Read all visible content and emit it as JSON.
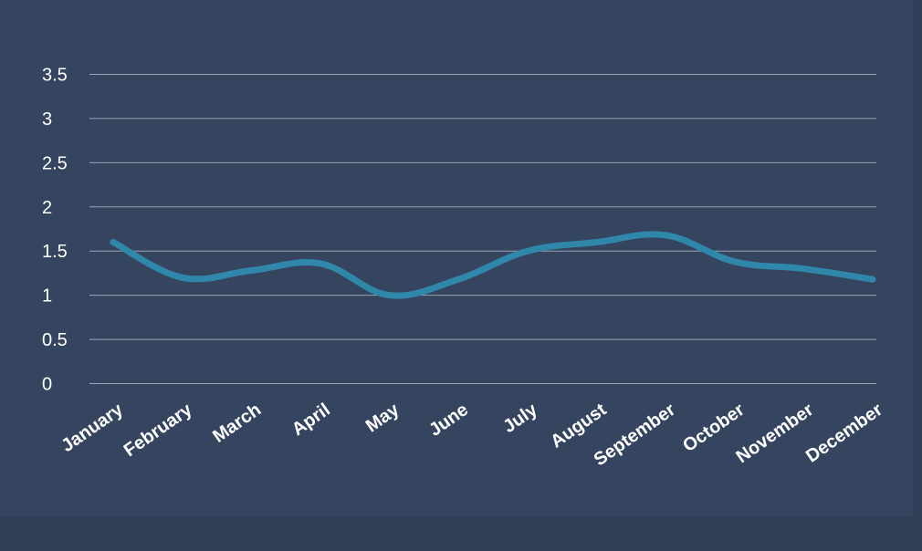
{
  "colors": {
    "background": "#36455f",
    "outer_background": "#2f3d57",
    "line": "#2f87a9",
    "grid": "#b9c2d2",
    "text": "#ffffff"
  },
  "chart_data": {
    "type": "line",
    "title": "",
    "xlabel": "",
    "ylabel": "",
    "categories": [
      "January",
      "February",
      "March",
      "April",
      "May",
      "June",
      "July",
      "August",
      "September",
      "October",
      "November",
      "December"
    ],
    "series": [
      {
        "values": [
          1.6,
          1.2,
          1.28,
          1.36,
          1.0,
          1.18,
          1.5,
          1.6,
          1.68,
          1.38,
          1.3,
          1.18
        ]
      }
    ],
    "ylim": [
      0,
      3.5
    ],
    "yticks": [
      "0",
      "0.5",
      "1",
      "1.5",
      "2",
      "2.5",
      "3",
      "3.5"
    ],
    "grid": true,
    "legend": "none"
  }
}
